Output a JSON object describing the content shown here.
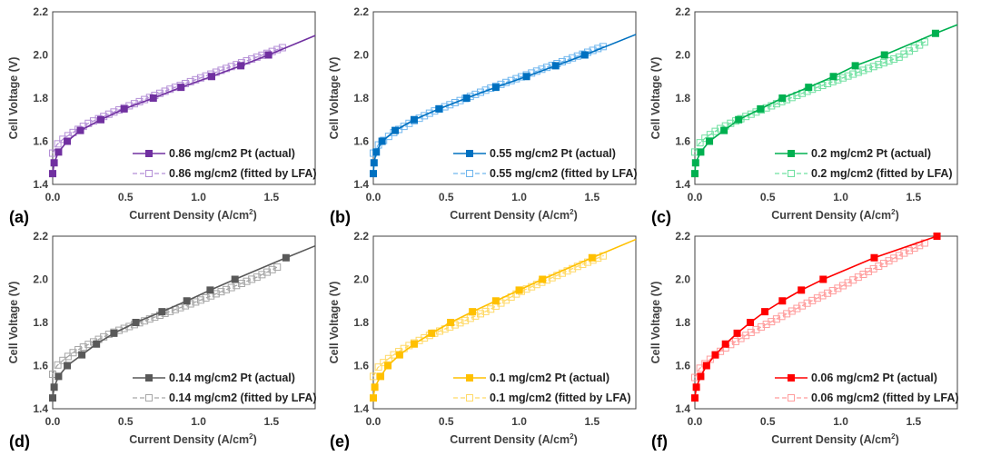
{
  "chart_data": [
    {
      "type": "line",
      "panel_label": "(a)",
      "color": "#7030A0",
      "light": "#B48FD6",
      "xlabel": "Current Density (A/cm",
      "xlabel_sup": "2",
      "xlabel_end": ")",
      "ylabel": "Cell Voltage (V)",
      "xlim": [
        0,
        1.8
      ],
      "ylim": [
        1.4,
        2.2
      ],
      "xticks": [
        "0.0",
        "0.5",
        "1.0",
        "1.5"
      ],
      "yticks": [
        "1.4",
        "1.6",
        "1.8",
        "2.0",
        "2.2"
      ],
      "legend": [
        "0.86 mg/cm2 Pt (actual)",
        "0.86 mg/cm2 (fitted by LFA)"
      ],
      "legend_position": "bottom-right",
      "actual": [
        [
          0,
          1.45
        ],
        [
          0.01,
          1.5
        ],
        [
          0.04,
          1.55
        ],
        [
          0.1,
          1.6
        ],
        [
          0.19,
          1.65
        ],
        [
          0.33,
          1.7
        ],
        [
          0.49,
          1.75
        ],
        [
          0.69,
          1.8
        ],
        [
          0.88,
          1.85
        ],
        [
          1.09,
          1.9
        ],
        [
          1.29,
          1.95
        ],
        [
          1.48,
          2.0
        ]
      ],
      "actual_line_end": [
        1.8,
        2.09
      ],
      "fitted": [
        [
          0,
          1.545
        ],
        [
          0.03,
          1.585
        ],
        [
          0.08,
          1.615
        ],
        [
          0.15,
          1.645
        ],
        [
          0.25,
          1.685
        ],
        [
          0.4,
          1.73
        ],
        [
          0.6,
          1.785
        ],
        [
          0.8,
          1.84
        ],
        [
          1.0,
          1.89
        ],
        [
          1.2,
          1.94
        ],
        [
          1.4,
          1.99
        ],
        [
          1.58,
          2.035
        ]
      ]
    },
    {
      "type": "line",
      "panel_label": "(b)",
      "color": "#0070C0",
      "light": "#6FB6EE",
      "xlabel": "Current Density (A/cm",
      "xlabel_sup": "2",
      "xlabel_end": ")",
      "ylabel": "Cell Voltage (V)",
      "xlim": [
        0,
        1.8
      ],
      "ylim": [
        1.4,
        2.2
      ],
      "xticks": [
        "0.0",
        "0.5",
        "1.0",
        "1.5"
      ],
      "yticks": [
        "1.4",
        "1.6",
        "1.8",
        "2.0",
        "2.2"
      ],
      "legend": [
        "0.55 mg/cm2 Pt (actual)",
        "0.55 mg/cm2 (fitted by LFA)"
      ],
      "legend_position": "bottom-right",
      "actual": [
        [
          0,
          1.45
        ],
        [
          0.005,
          1.5
        ],
        [
          0.02,
          1.55
        ],
        [
          0.06,
          1.6
        ],
        [
          0.15,
          1.65
        ],
        [
          0.28,
          1.7
        ],
        [
          0.45,
          1.75
        ],
        [
          0.64,
          1.8
        ],
        [
          0.84,
          1.85
        ],
        [
          1.05,
          1.9
        ],
        [
          1.25,
          1.95
        ],
        [
          1.45,
          2.0
        ]
      ],
      "actual_line_end": [
        1.8,
        2.095
      ],
      "fitted": [
        [
          0,
          1.545
        ],
        [
          0.03,
          1.58
        ],
        [
          0.08,
          1.61
        ],
        [
          0.15,
          1.645
        ],
        [
          0.25,
          1.685
        ],
        [
          0.4,
          1.735
        ],
        [
          0.6,
          1.79
        ],
        [
          0.8,
          1.845
        ],
        [
          1.0,
          1.895
        ],
        [
          1.2,
          1.945
        ],
        [
          1.4,
          1.995
        ],
        [
          1.58,
          2.04
        ]
      ]
    },
    {
      "type": "line",
      "panel_label": "(c)",
      "color": "#00B050",
      "light": "#6FE0A0",
      "xlabel": "Current Density (A/cm",
      "xlabel_sup": "2",
      "xlabel_end": ")",
      "ylabel": "Cell Voltage (V)",
      "xlim": [
        0,
        1.8
      ],
      "ylim": [
        1.4,
        2.2
      ],
      "xticks": [
        "0.0",
        "0.5",
        "1.0",
        "1.5"
      ],
      "yticks": [
        "1.4",
        "1.6",
        "1.8",
        "2.0",
        "2.2"
      ],
      "legend": [
        "0.2 mg/cm2 Pt (actual)",
        "0.2 mg/cm2 (fitted by LFA)"
      ],
      "legend_position": "bottom-right",
      "actual": [
        [
          0,
          1.45
        ],
        [
          0.005,
          1.5
        ],
        [
          0.04,
          1.55
        ],
        [
          0.1,
          1.6
        ],
        [
          0.2,
          1.65
        ],
        [
          0.3,
          1.7
        ],
        [
          0.45,
          1.75
        ],
        [
          0.6,
          1.8
        ],
        [
          0.78,
          1.85
        ],
        [
          0.95,
          1.9
        ],
        [
          1.1,
          1.95
        ],
        [
          1.3,
          2.0
        ],
        [
          1.65,
          2.1
        ]
      ],
      "actual_line_end": [
        1.8,
        2.14
      ],
      "fitted": [
        [
          0,
          1.55
        ],
        [
          0.03,
          1.59
        ],
        [
          0.08,
          1.62
        ],
        [
          0.15,
          1.65
        ],
        [
          0.25,
          1.685
        ],
        [
          0.4,
          1.73
        ],
        [
          0.6,
          1.785
        ],
        [
          0.8,
          1.84
        ],
        [
          1.0,
          1.89
        ],
        [
          1.2,
          1.94
        ],
        [
          1.4,
          1.99
        ],
        [
          1.6,
          2.07
        ]
      ]
    },
    {
      "type": "line",
      "panel_label": "(d)",
      "color": "#595959",
      "light": "#A6A6A6",
      "xlabel": "Current Density (A/cm",
      "xlabel_sup": "2",
      "xlabel_end": ")",
      "ylabel": "Cell Voltage (V)",
      "xlim": [
        0,
        1.8
      ],
      "ylim": [
        1.4,
        2.2
      ],
      "xticks": [
        "0.0",
        "0.5",
        "1.0",
        "1.5"
      ],
      "yticks": [
        "1.4",
        "1.6",
        "1.8",
        "2.0",
        "2.2"
      ],
      "legend": [
        "0.14 mg/cm2 Pt (actual)",
        "0.14 mg/cm2 (fitted by LFA)"
      ],
      "legend_position": "bottom-right",
      "actual": [
        [
          0,
          1.45
        ],
        [
          0.01,
          1.5
        ],
        [
          0.04,
          1.55
        ],
        [
          0.1,
          1.6
        ],
        [
          0.2,
          1.65
        ],
        [
          0.3,
          1.7
        ],
        [
          0.42,
          1.75
        ],
        [
          0.57,
          1.8
        ],
        [
          0.75,
          1.85
        ],
        [
          0.92,
          1.9
        ],
        [
          1.08,
          1.95
        ],
        [
          1.25,
          2.0
        ],
        [
          1.6,
          2.1
        ]
      ],
      "actual_line_end": [
        1.8,
        2.155
      ],
      "fitted": [
        [
          0,
          1.56
        ],
        [
          0.03,
          1.6
        ],
        [
          0.08,
          1.63
        ],
        [
          0.15,
          1.665
        ],
        [
          0.25,
          1.7
        ],
        [
          0.4,
          1.75
        ],
        [
          0.6,
          1.8
        ],
        [
          0.8,
          1.85
        ],
        [
          1.0,
          1.9
        ],
        [
          1.2,
          1.955
        ],
        [
          1.4,
          2.01
        ],
        [
          1.55,
          2.06
        ]
      ]
    },
    {
      "type": "line",
      "panel_label": "(e)",
      "color": "#FFC000",
      "light": "#FFD966",
      "xlabel": "Current Density (A/cm",
      "xlabel_sup": "2",
      "xlabel_end": ")",
      "ylabel": "Cell Voltage (V)",
      "xlim": [
        0,
        1.8
      ],
      "ylim": [
        1.4,
        2.2
      ],
      "xticks": [
        "0.0",
        "0.5",
        "1.0",
        "1.5"
      ],
      "yticks": [
        "1.4",
        "1.6",
        "1.8",
        "2.0",
        "2.2"
      ],
      "legend": [
        "0.1 mg/cm2 Pt (actual)",
        "0.1 mg/cm2 (fitted by LFA)"
      ],
      "legend_position": "bottom-right",
      "actual": [
        [
          0,
          1.45
        ],
        [
          0.01,
          1.5
        ],
        [
          0.05,
          1.55
        ],
        [
          0.1,
          1.6
        ],
        [
          0.18,
          1.65
        ],
        [
          0.28,
          1.7
        ],
        [
          0.4,
          1.75
        ],
        [
          0.53,
          1.8
        ],
        [
          0.68,
          1.85
        ],
        [
          0.84,
          1.9
        ],
        [
          1.0,
          1.95
        ],
        [
          1.16,
          2.0
        ],
        [
          1.5,
          2.1
        ]
      ],
      "actual_line_end": [
        1.8,
        2.185
      ],
      "fitted": [
        [
          0,
          1.55
        ],
        [
          0.03,
          1.59
        ],
        [
          0.08,
          1.62
        ],
        [
          0.15,
          1.655
        ],
        [
          0.25,
          1.695
        ],
        [
          0.4,
          1.745
        ],
        [
          0.6,
          1.8
        ],
        [
          0.8,
          1.86
        ],
        [
          1.0,
          1.94
        ],
        [
          1.2,
          2.0
        ],
        [
          1.4,
          2.06
        ],
        [
          1.58,
          2.11
        ]
      ]
    },
    {
      "type": "line",
      "panel_label": "(f)",
      "color": "#FF0000",
      "light": "#FF9C9C",
      "xlabel": "Current Density (A/cm",
      "xlabel_sup": "2",
      "xlabel_end": ")",
      "ylabel": "Cell Voltage (V)",
      "xlim": [
        0,
        1.8
      ],
      "ylim": [
        1.4,
        2.2
      ],
      "xticks": [
        "0.0",
        "0.5",
        "1.0",
        "1.5"
      ],
      "yticks": [
        "1.4",
        "1.6",
        "1.8",
        "2.0",
        "2.2"
      ],
      "legend": [
        "0.06 mg/cm2 Pt (actual)",
        "0.06 mg/cm2 (fitted by LFA)"
      ],
      "legend_position": "bottom-right",
      "actual": [
        [
          0,
          1.45
        ],
        [
          0.01,
          1.5
        ],
        [
          0.04,
          1.55
        ],
        [
          0.08,
          1.6
        ],
        [
          0.14,
          1.65
        ],
        [
          0.21,
          1.7
        ],
        [
          0.29,
          1.75
        ],
        [
          0.38,
          1.8
        ],
        [
          0.48,
          1.85
        ],
        [
          0.6,
          1.9
        ],
        [
          0.73,
          1.95
        ],
        [
          0.88,
          2.0
        ],
        [
          1.23,
          2.1
        ],
        [
          1.66,
          2.2
        ]
      ],
      "actual_line_end": null,
      "fitted": [
        [
          0,
          1.545
        ],
        [
          0.03,
          1.585
        ],
        [
          0.08,
          1.615
        ],
        [
          0.15,
          1.655
        ],
        [
          0.25,
          1.7
        ],
        [
          0.4,
          1.76
        ],
        [
          0.6,
          1.83
        ],
        [
          0.8,
          1.9
        ],
        [
          1.0,
          1.965
        ],
        [
          1.2,
          2.04
        ],
        [
          1.4,
          2.11
        ],
        [
          1.58,
          2.17
        ]
      ]
    }
  ]
}
